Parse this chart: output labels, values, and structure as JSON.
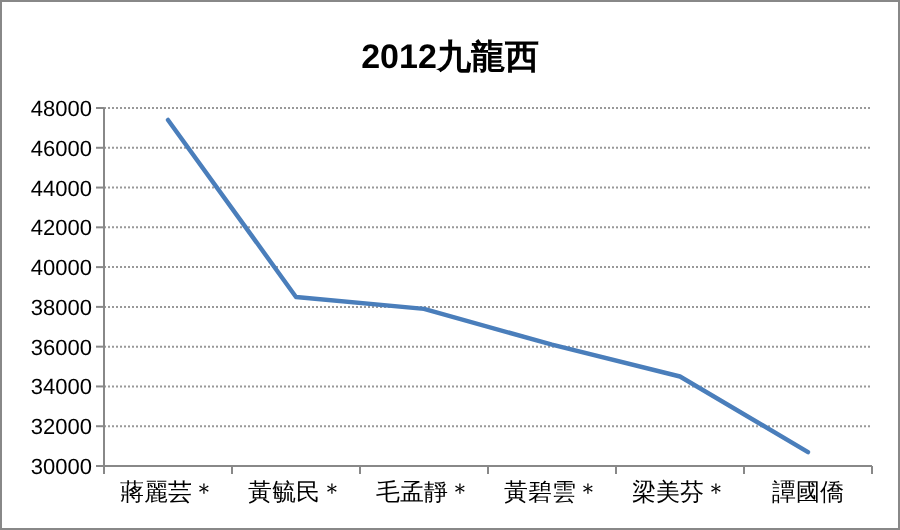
{
  "chart_data": {
    "type": "line",
    "title": "2012九龍西",
    "categories": [
      "蔣麗芸＊",
      "黃毓民＊",
      "毛孟靜＊",
      "黃碧雲＊",
      "梁美芬＊",
      "譚國僑"
    ],
    "series": [
      {
        "color": "#4a7ebb",
        "values": [
          47400,
          38500,
          37900,
          36100,
          34500,
          30700
        ]
      }
    ],
    "ylim": [
      30000,
      48000
    ],
    "yticks": [
      30000,
      32000,
      34000,
      36000,
      38000,
      40000,
      42000,
      44000,
      46000,
      48000
    ],
    "grid": "y",
    "marker": "none",
    "line_style": "solid"
  }
}
